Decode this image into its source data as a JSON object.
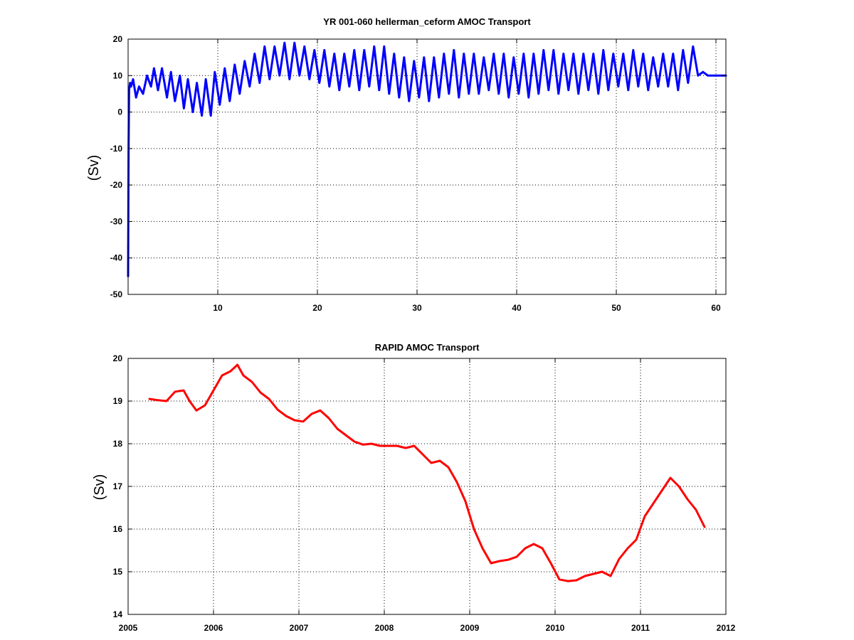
{
  "chart_data": [
    {
      "type": "line",
      "title": "YR 001-060 hellerman_ceform AMOC Transport",
      "xlabel": "",
      "ylabel": "(Sv)",
      "xlim": [
        1,
        61
      ],
      "ylim": [
        -50,
        20
      ],
      "xticks": [
        10,
        20,
        30,
        40,
        50,
        60
      ],
      "yticks": [
        -50,
        -40,
        -30,
        -20,
        -10,
        0,
        10,
        20
      ],
      "grid": true,
      "color": "#0000ff",
      "series": [
        {
          "x": [
            1.0,
            1.02,
            1.05,
            1.1,
            1.2,
            1.3,
            1.5,
            1.8,
            2.1,
            2.5,
            2.9,
            3.3,
            3.6,
            4.0,
            4.4,
            4.9,
            5.3,
            5.7,
            6.2,
            6.6,
            7.0,
            7.5,
            7.9,
            8.4,
            8.8,
            9.3,
            9.7,
            10.2,
            10.7,
            11.2,
            11.7,
            12.2,
            12.7,
            13.2,
            13.7,
            14.2,
            14.7,
            15.2,
            15.7,
            16.2,
            16.7,
            17.2,
            17.7,
            18.2,
            18.7,
            19.2,
            19.7,
            20.2,
            20.7,
            21.2,
            21.7,
            22.2,
            22.7,
            23.2,
            23.7,
            24.2,
            24.7,
            25.2,
            25.7,
            26.2,
            26.7,
            27.2,
            27.7,
            28.2,
            28.7,
            29.2,
            29.7,
            30.2,
            30.7,
            31.2,
            31.7,
            32.2,
            32.7,
            33.2,
            33.7,
            34.2,
            34.7,
            35.2,
            35.7,
            36.2,
            36.7,
            37.2,
            37.7,
            38.2,
            38.7,
            39.2,
            39.7,
            40.2,
            40.7,
            41.2,
            41.7,
            42.2,
            42.7,
            43.2,
            43.7,
            44.2,
            44.7,
            45.2,
            45.7,
            46.2,
            46.7,
            47.2,
            47.7,
            48.2,
            48.7,
            49.2,
            49.7,
            50.2,
            50.7,
            51.2,
            51.7,
            52.2,
            52.7,
            53.2,
            53.7,
            54.2,
            54.7,
            55.2,
            55.7,
            56.2,
            56.7,
            57.2,
            57.7,
            58.2,
            58.7,
            59.2,
            59.7,
            60.2,
            60.6,
            61.0
          ],
          "y": [
            -45,
            -30,
            -10,
            6,
            8,
            7,
            9,
            4,
            7,
            5,
            10,
            7,
            12,
            6,
            12,
            4,
            11,
            3,
            10,
            1,
            9,
            0,
            8,
            -1,
            9,
            -1,
            11,
            2,
            12,
            3,
            13,
            5,
            14,
            7,
            16,
            8,
            18,
            9,
            18,
            10,
            19,
            9,
            19,
            10,
            18,
            9,
            17,
            8,
            17,
            7,
            16,
            6,
            16,
            7,
            17,
            6,
            17,
            7,
            18,
            6,
            18,
            5,
            16,
            4,
            15,
            3,
            14,
            4,
            15,
            3,
            15,
            4,
            16,
            5,
            17,
            4,
            16,
            5,
            16,
            5,
            15,
            6,
            16,
            5,
            16,
            4,
            15,
            5,
            16,
            4,
            16,
            5,
            17,
            6,
            17,
            5,
            16,
            6,
            16,
            5,
            16,
            6,
            16,
            5,
            17,
            6,
            16,
            7,
            16,
            6,
            17,
            7,
            16,
            6,
            15,
            7,
            16,
            7,
            16,
            6,
            17,
            8,
            18,
            10,
            11,
            10,
            10,
            10,
            10,
            10
          ]
        }
      ]
    },
    {
      "type": "line",
      "title": "RAPID AMOC Transport",
      "xlabel": "",
      "ylabel": "(Sv)",
      "xlim": [
        2005,
        2012
      ],
      "ylim": [
        14,
        20
      ],
      "xticks": [
        2005,
        2006,
        2007,
        2008,
        2009,
        2010,
        2011,
        2012
      ],
      "yticks": [
        14,
        15,
        16,
        17,
        18,
        19,
        20
      ],
      "grid": true,
      "color": "#ff0000",
      "series": [
        {
          "x": [
            2005.25,
            2005.35,
            2005.45,
            2005.55,
            2005.65,
            2005.72,
            2005.8,
            2005.9,
            2006.0,
            2006.1,
            2006.2,
            2006.28,
            2006.35,
            2006.45,
            2006.55,
            2006.65,
            2006.75,
            2006.85,
            2006.95,
            2007.05,
            2007.15,
            2007.25,
            2007.35,
            2007.45,
            2007.55,
            2007.65,
            2007.75,
            2007.85,
            2007.95,
            2008.05,
            2008.15,
            2008.25,
            2008.35,
            2008.45,
            2008.55,
            2008.65,
            2008.75,
            2008.85,
            2008.95,
            2009.05,
            2009.15,
            2009.25,
            2009.35,
            2009.45,
            2009.55,
            2009.65,
            2009.75,
            2009.85,
            2009.95,
            2010.05,
            2010.15,
            2010.25,
            2010.35,
            2010.45,
            2010.55,
            2010.65,
            2010.75,
            2010.85,
            2010.95,
            2011.05,
            2011.15,
            2011.25,
            2011.35,
            2011.45,
            2011.55,
            2011.65,
            2011.75
          ],
          "y": [
            19.05,
            19.02,
            19.0,
            19.22,
            19.25,
            19.0,
            18.78,
            18.9,
            19.25,
            19.6,
            19.7,
            19.85,
            19.6,
            19.45,
            19.2,
            19.05,
            18.8,
            18.65,
            18.55,
            18.52,
            18.7,
            18.78,
            18.6,
            18.35,
            18.2,
            18.05,
            17.98,
            18.0,
            17.95,
            17.95,
            17.95,
            17.9,
            17.95,
            17.75,
            17.55,
            17.6,
            17.45,
            17.1,
            16.65,
            16.0,
            15.55,
            15.2,
            15.25,
            15.28,
            15.35,
            15.55,
            15.65,
            15.55,
            15.2,
            14.82,
            14.78,
            14.8,
            14.9,
            14.95,
            15.0,
            14.9,
            15.3,
            15.55,
            15.75,
            16.3,
            16.6,
            16.9,
            17.2,
            17.0,
            16.7,
            16.45,
            16.05
          ]
        }
      ]
    }
  ]
}
